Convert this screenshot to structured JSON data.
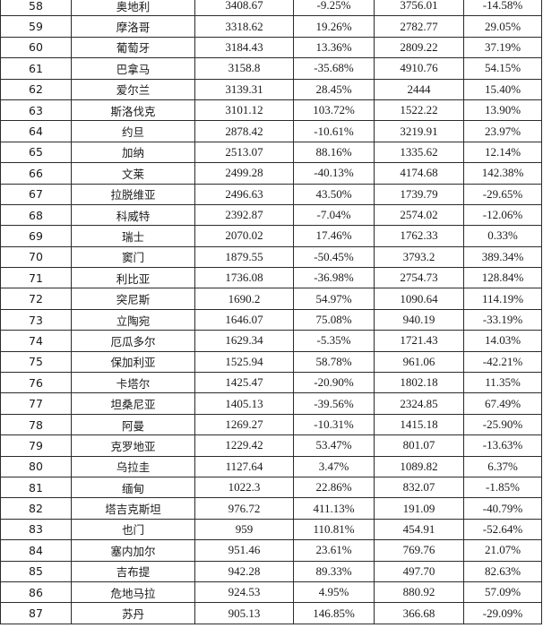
{
  "table": {
    "rows": [
      {
        "rank": "58",
        "country": "奥地利",
        "value1": "3408.67",
        "growth1": "-9.25%",
        "value2": "3756.01",
        "growth2": "-14.58%"
      },
      {
        "rank": "59",
        "country": "摩洛哥",
        "value1": "3318.62",
        "growth1": "19.26%",
        "value2": "2782.77",
        "growth2": "29.05%"
      },
      {
        "rank": "60",
        "country": "葡萄牙",
        "value1": "3184.43",
        "growth1": "13.36%",
        "value2": "2809.22",
        "growth2": "37.19%"
      },
      {
        "rank": "61",
        "country": "巴拿马",
        "value1": "3158.8",
        "growth1": "-35.68%",
        "value2": "4910.76",
        "growth2": "54.15%"
      },
      {
        "rank": "62",
        "country": "爱尔兰",
        "value1": "3139.31",
        "growth1": "28.45%",
        "value2": "2444",
        "growth2": "15.40%"
      },
      {
        "rank": "63",
        "country": "斯洛伐克",
        "value1": "3101.12",
        "growth1": "103.72%",
        "value2": "1522.22",
        "growth2": "13.90%"
      },
      {
        "rank": "64",
        "country": "约旦",
        "value1": "2878.42",
        "growth1": "-10.61%",
        "value2": "3219.91",
        "growth2": "23.97%"
      },
      {
        "rank": "65",
        "country": "加纳",
        "value1": "2513.07",
        "growth1": "88.16%",
        "value2": "1335.62",
        "growth2": "12.14%"
      },
      {
        "rank": "66",
        "country": "文莱",
        "value1": "2499.28",
        "growth1": "-40.13%",
        "value2": "4174.68",
        "growth2": "142.38%"
      },
      {
        "rank": "67",
        "country": "拉脱维亚",
        "value1": "2496.63",
        "growth1": "43.50%",
        "value2": "1739.79",
        "growth2": "-29.65%"
      },
      {
        "rank": "68",
        "country": "科威特",
        "value1": "2392.87",
        "growth1": "-7.04%",
        "value2": "2574.02",
        "growth2": "-12.06%"
      },
      {
        "rank": "69",
        "country": "瑞士",
        "value1": "2070.02",
        "growth1": "17.46%",
        "value2": "1762.33",
        "growth2": "0.33%"
      },
      {
        "rank": "70",
        "country": "窦门",
        "value1": "1879.55",
        "growth1": "-50.45%",
        "value2": "3793.2",
        "growth2": "389.34%"
      },
      {
        "rank": "71",
        "country": "利比亚",
        "value1": "1736.08",
        "growth1": "-36.98%",
        "value2": "2754.73",
        "growth2": "128.84%"
      },
      {
        "rank": "72",
        "country": "突尼斯",
        "value1": "1690.2",
        "growth1": "54.97%",
        "value2": "1090.64",
        "growth2": "114.19%"
      },
      {
        "rank": "73",
        "country": "立陶宛",
        "value1": "1646.07",
        "growth1": "75.08%",
        "value2": "940.19",
        "growth2": "-33.19%"
      },
      {
        "rank": "74",
        "country": "厄瓜多尔",
        "value1": "1629.34",
        "growth1": "-5.35%",
        "value2": "1721.43",
        "growth2": "14.03%"
      },
      {
        "rank": "75",
        "country": "保加利亚",
        "value1": "1525.94",
        "growth1": "58.78%",
        "value2": "961.06",
        "growth2": "-42.21%"
      },
      {
        "rank": "76",
        "country": "卡塔尔",
        "value1": "1425.47",
        "growth1": "-20.90%",
        "value2": "1802.18",
        "growth2": "11.35%"
      },
      {
        "rank": "77",
        "country": "坦桑尼亚",
        "value1": "1405.13",
        "growth1": "-39.56%",
        "value2": "2324.85",
        "growth2": "67.49%"
      },
      {
        "rank": "78",
        "country": "阿曼",
        "value1": "1269.27",
        "growth1": "-10.31%",
        "value2": "1415.18",
        "growth2": "-25.90%"
      },
      {
        "rank": "79",
        "country": "克罗地亚",
        "value1": "1229.42",
        "growth1": "53.47%",
        "value2": "801.07",
        "growth2": "-13.63%"
      },
      {
        "rank": "80",
        "country": "乌拉圭",
        "value1": "1127.64",
        "growth1": "3.47%",
        "value2": "1089.82",
        "growth2": "6.37%"
      },
      {
        "rank": "81",
        "country": "缅甸",
        "value1": "1022.3",
        "growth1": "22.86%",
        "value2": "832.07",
        "growth2": "-1.85%"
      },
      {
        "rank": "82",
        "country": "塔吉克斯坦",
        "value1": "976.72",
        "growth1": "411.13%",
        "value2": "191.09",
        "growth2": "-40.79%"
      },
      {
        "rank": "83",
        "country": "也门",
        "value1": "959",
        "growth1": "110.81%",
        "value2": "454.91",
        "growth2": "-52.64%"
      },
      {
        "rank": "84",
        "country": "塞内加尔",
        "value1": "951.46",
        "growth1": "23.61%",
        "value2": "769.76",
        "growth2": "21.07%"
      },
      {
        "rank": "85",
        "country": "吉布提",
        "value1": "942.28",
        "growth1": "89.33%",
        "value2": "497.70",
        "growth2": "82.63%"
      },
      {
        "rank": "86",
        "country": "危地马拉",
        "value1": "924.53",
        "growth1": "4.95%",
        "value2": "880.92",
        "growth2": "57.09%"
      },
      {
        "rank": "87",
        "country": "苏丹",
        "value1": "905.13",
        "growth1": "146.85%",
        "value2": "366.68",
        "growth2": "-29.09%"
      }
    ]
  }
}
